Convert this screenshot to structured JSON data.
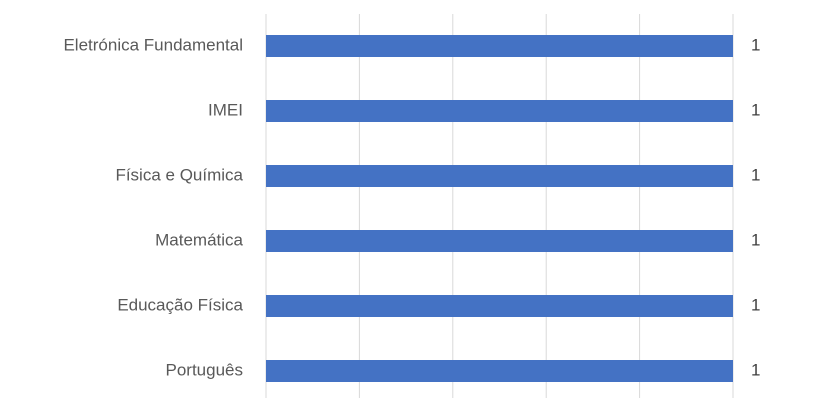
{
  "chart_data": {
    "type": "bar",
    "orientation": "horizontal",
    "categories": [
      "Eletrónica Fundamental",
      "IMEI",
      "Física e Química",
      "Matemática",
      "Educação Física",
      "Português"
    ],
    "values": [
      1,
      1,
      1,
      1,
      1,
      1
    ],
    "data_labels": [
      "1",
      "1",
      "1",
      "1",
      "1",
      "1"
    ],
    "title": "",
    "xlabel": "",
    "ylabel": "",
    "xlim": [
      0,
      1
    ],
    "grid": true,
    "legend": "none",
    "bar_color": "#4472C4",
    "grid_color": "#D9D9D9"
  }
}
